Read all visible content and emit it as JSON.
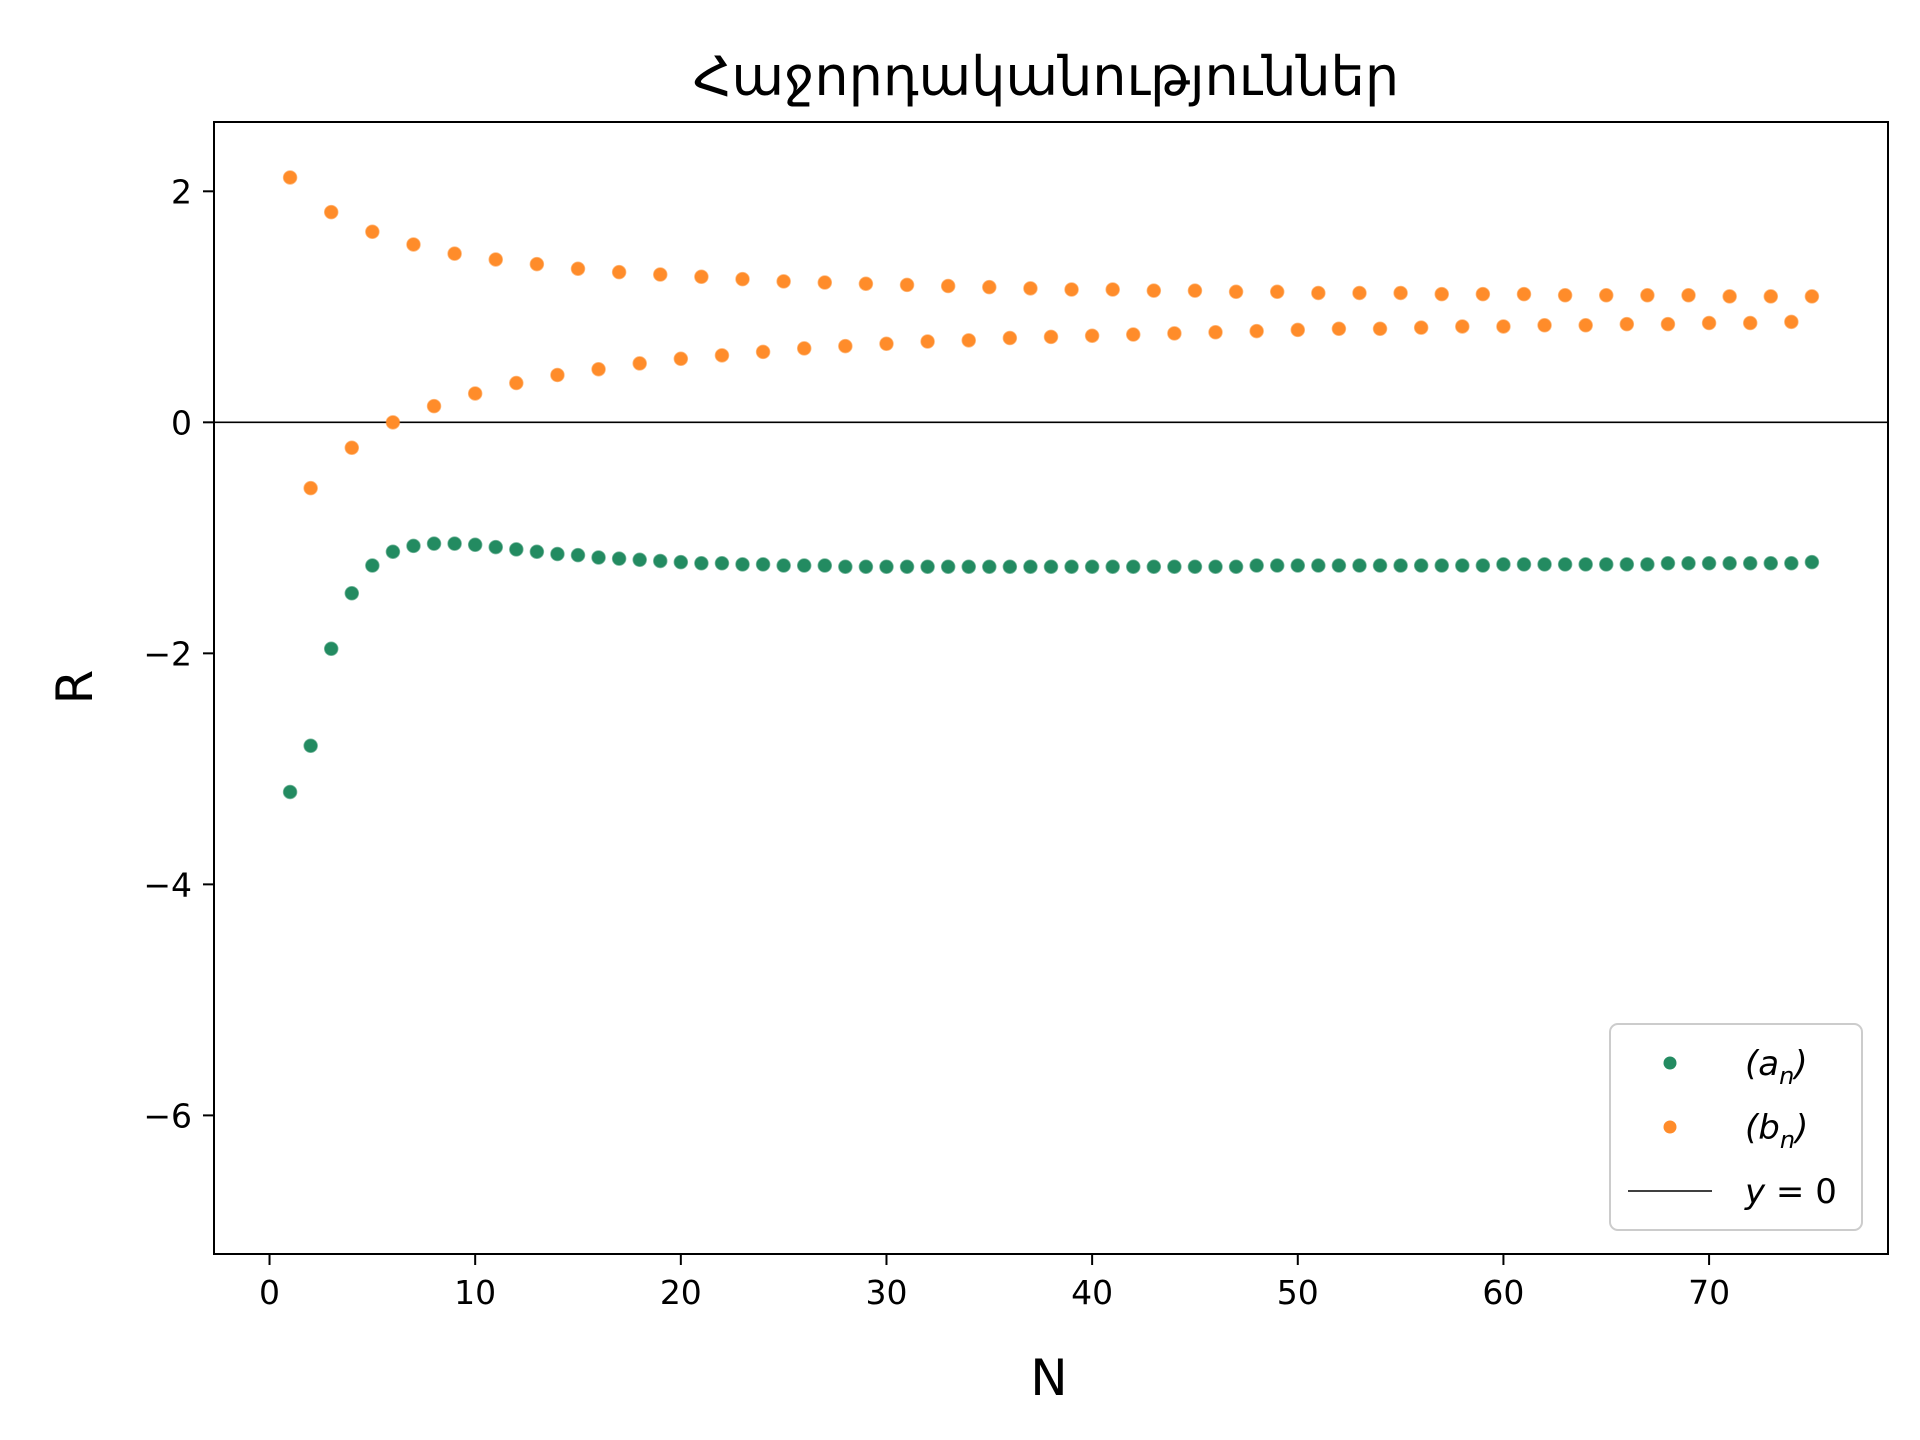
{
  "chart_data": {
    "type": "scatter",
    "title": "Հաջորդականություններ",
    "xlabel": "N",
    "ylabel": "R",
    "xlim": [
      -2.7,
      78.7
    ],
    "ylim": [
      -7.2,
      2.6
    ],
    "xticks": [
      0,
      10,
      20,
      30,
      40,
      50,
      60,
      70
    ],
    "yticks": [
      2,
      0,
      -2,
      -4,
      -6
    ],
    "ytick_labels": [
      "2",
      "0",
      "−2",
      "−4",
      "−6"
    ],
    "grid": false,
    "legend_position": "bottom-right",
    "series": [
      {
        "name": "(a_n)",
        "label_base": "(a",
        "label_sub": "n",
        "label_close": ")",
        "color": "#238b61",
        "x": [
          1,
          2,
          3,
          4,
          5,
          6,
          7,
          8,
          9,
          10,
          11,
          12,
          13,
          14,
          15,
          16,
          17,
          18,
          19,
          20,
          21,
          22,
          23,
          24,
          25,
          26,
          27,
          28,
          29,
          30,
          31,
          32,
          33,
          34,
          35,
          36,
          37,
          38,
          39,
          40,
          41,
          42,
          43,
          44,
          45,
          46,
          47,
          48,
          49,
          50,
          51,
          52,
          53,
          54,
          55,
          56,
          57,
          58,
          59,
          60,
          61,
          62,
          63,
          64,
          65,
          66,
          67,
          68,
          69,
          70,
          71,
          72,
          73,
          74,
          75
        ],
        "y": [
          -3.2,
          -2.8,
          -1.96,
          -1.48,
          -1.24,
          -1.12,
          -1.07,
          -1.05,
          -1.05,
          -1.06,
          -1.08,
          -1.1,
          -1.12,
          -1.14,
          -1.15,
          -1.17,
          -1.18,
          -1.19,
          -1.2,
          -1.21,
          -1.22,
          -1.22,
          -1.23,
          -1.23,
          -1.24,
          -1.24,
          -1.24,
          -1.25,
          -1.25,
          -1.25,
          -1.25,
          -1.25,
          -1.25,
          -1.25,
          -1.25,
          -1.25,
          -1.25,
          -1.25,
          -1.25,
          -1.25,
          -1.25,
          -1.25,
          -1.25,
          -1.25,
          -1.25,
          -1.25,
          -1.25,
          -1.24,
          -1.24,
          -1.24,
          -1.24,
          -1.24,
          -1.24,
          -1.24,
          -1.24,
          -1.24,
          -1.24,
          -1.24,
          -1.24,
          -1.23,
          -1.23,
          -1.23,
          -1.23,
          -1.23,
          -1.23,
          -1.23,
          -1.23,
          -1.22,
          -1.22,
          -1.22,
          -1.22,
          -1.22,
          -1.22,
          -1.22,
          -1.21
        ]
      },
      {
        "name": "(b_n)",
        "label_base": "(b",
        "label_sub": "n",
        "label_close": ")",
        "color": "#ff8c2a",
        "x": [
          1,
          2,
          3,
          4,
          5,
          6,
          7,
          8,
          9,
          10,
          11,
          12,
          13,
          14,
          15,
          16,
          17,
          18,
          19,
          20,
          21,
          22,
          23,
          24,
          25,
          26,
          27,
          28,
          29,
          30,
          31,
          32,
          33,
          34,
          35,
          36,
          37,
          38,
          39,
          40,
          41,
          42,
          43,
          44,
          45,
          46,
          47,
          48,
          49,
          50,
          51,
          52,
          53,
          54,
          55,
          56,
          57,
          58,
          59,
          60,
          61,
          62,
          63,
          64,
          65,
          66,
          67,
          68,
          69,
          70,
          71,
          72,
          73,
          74,
          75
        ],
        "y": [
          2.12,
          -0.57,
          1.82,
          -0.22,
          1.65,
          0.0,
          1.54,
          0.14,
          1.46,
          0.25,
          1.41,
          0.34,
          1.37,
          0.41,
          1.33,
          0.46,
          1.3,
          0.51,
          1.28,
          0.55,
          1.26,
          0.58,
          1.24,
          0.61,
          1.22,
          0.64,
          1.21,
          0.66,
          1.2,
          0.68,
          1.19,
          0.7,
          1.18,
          0.71,
          1.17,
          0.73,
          1.16,
          0.74,
          1.15,
          0.75,
          1.15,
          0.76,
          1.14,
          0.77,
          1.14,
          0.78,
          1.13,
          0.79,
          1.13,
          0.8,
          1.12,
          0.81,
          1.12,
          0.81,
          1.12,
          0.82,
          1.11,
          0.83,
          1.11,
          0.83,
          1.11,
          0.84,
          1.1,
          0.84,
          1.1,
          0.85,
          1.1,
          0.85,
          1.1,
          0.86,
          1.09,
          0.86,
          1.09,
          0.87,
          1.09
        ]
      }
    ],
    "reference_line": {
      "y": 0,
      "label_var": "y",
      "label_eq": " = 0",
      "color": "#000000"
    }
  }
}
